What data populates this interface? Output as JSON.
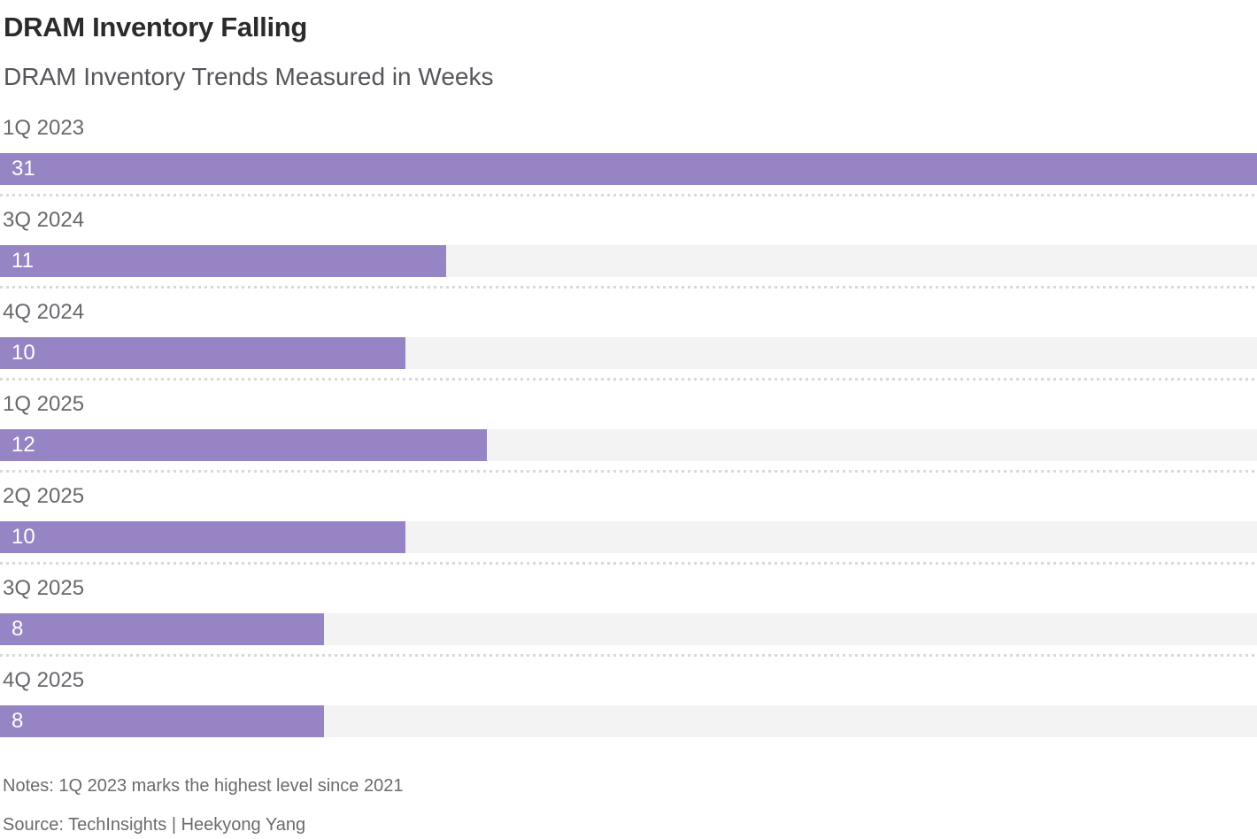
{
  "header": {
    "title": "DRAM Inventory Falling",
    "subtitle": "DRAM Inventory Trends Measured in Weeks"
  },
  "chart_data": {
    "type": "bar",
    "orientation": "horizontal",
    "title": "DRAM Inventory Falling",
    "subtitle": "DRAM Inventory Trends Measured in Weeks",
    "categories": [
      "1Q 2023",
      "3Q 2024",
      "4Q 2024",
      "1Q 2025",
      "2Q 2025",
      "3Q 2025",
      "4Q 2025"
    ],
    "values": [
      31,
      11,
      10,
      12,
      10,
      8,
      8
    ],
    "value_unit": "weeks",
    "xlim": [
      0,
      31
    ],
    "value_labels_inside_bar": true,
    "grid": false,
    "legend": false,
    "bar_color": "#9684c4",
    "track_color": "#f3f3f3",
    "separator_color": "#d8d8d8",
    "value_label_color": "#ffffff"
  },
  "footer": {
    "notes": "Notes: 1Q 2023 marks the highest level since 2021",
    "source": "Source: TechInsights | Heekyong Yang"
  }
}
